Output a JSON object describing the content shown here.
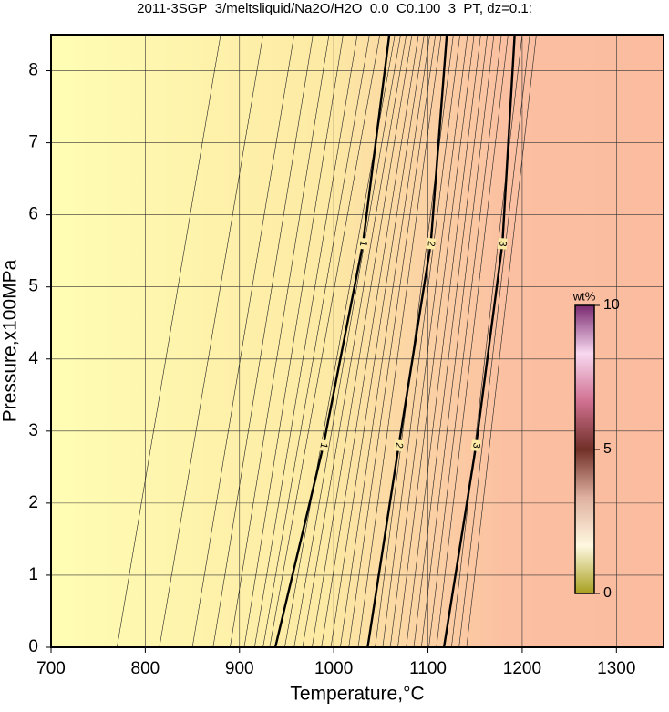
{
  "chart_data": {
    "type": "contour",
    "title": "2011-3SGP_3/meltsliquid/Na2O/H2O_0.0_C0.100_3_PT, dz=0.1:",
    "xlabel": "Temperature,°C",
    "ylabel": "Pressure,x100MPa",
    "xlim": [
      700,
      1350
    ],
    "ylim": [
      0,
      8.5
    ],
    "xticks": [
      700,
      800,
      900,
      1000,
      1100,
      1200,
      1300
    ],
    "yticks": [
      0,
      1,
      2,
      3,
      4,
      5,
      6,
      7,
      8
    ],
    "grid": true,
    "major_contours": [
      {
        "label": "1",
        "T": [
          938,
          989,
          1031,
          1059
        ],
        "P": [
          0,
          2.8,
          5.6,
          8.5
        ]
      },
      {
        "label": "2",
        "T": [
          1036,
          1069,
          1103,
          1120
        ],
        "P": [
          0,
          2.8,
          5.6,
          8.5
        ]
      },
      {
        "label": "3",
        "T": [
          1117,
          1151,
          1179,
          1192
        ],
        "P": [
          0,
          2.8,
          5.6,
          8.5
        ]
      }
    ],
    "thin_P": [
      0,
      8.5
    ],
    "thin_contours": [
      [
        770,
        880
      ],
      [
        815,
        925
      ],
      [
        850,
        958
      ],
      [
        872,
        978
      ],
      [
        890,
        995
      ],
      [
        905,
        1010
      ],
      [
        916,
        1025
      ],
      [
        925,
        1038
      ],
      [
        932,
        1049
      ],
      [
        948,
        1065
      ],
      [
        958,
        1071
      ],
      [
        967,
        1077
      ],
      [
        977,
        1083
      ],
      [
        987,
        1090
      ],
      [
        997,
        1096
      ],
      [
        1007,
        1102
      ],
      [
        1016,
        1108
      ],
      [
        1026,
        1114
      ],
      [
        1044,
        1127
      ],
      [
        1052,
        1134
      ],
      [
        1060,
        1142
      ],
      [
        1068,
        1149
      ],
      [
        1077,
        1156
      ],
      [
        1085,
        1163
      ],
      [
        1093,
        1170
      ],
      [
        1101,
        1178
      ],
      [
        1109,
        1185
      ],
      [
        1125,
        1200
      ],
      [
        1133,
        1208
      ],
      [
        1141,
        1215
      ]
    ],
    "colorbar": {
      "label": "wt%",
      "lim": [
        0,
        10
      ],
      "ticks": [
        0,
        5,
        10
      ],
      "colors": [
        "#a8a020",
        "#fff8e0",
        "#e0b0a0",
        "#703028",
        "#d07090",
        "#f8d8f0",
        "#7a2a70"
      ]
    }
  }
}
